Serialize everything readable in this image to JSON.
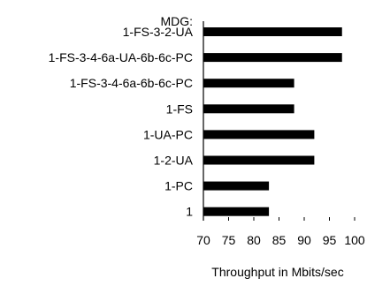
{
  "chart_data": {
    "type": "bar",
    "orientation": "horizontal",
    "categories": [
      "1-FS-3-2-UA",
      "1-FS-3-4-6a-UA-6b-6c-PC",
      "1-FS-3-4-6a-6b-6c-PC",
      "1-FS",
      "1-UA-PC",
      "1-2-UA",
      "1-PC",
      "1"
    ],
    "values": [
      97.5,
      97.5,
      88,
      88,
      92,
      92,
      83,
      83
    ],
    "title": "",
    "group_label": "MDG:",
    "xlabel": "Throughput in Mbits/sec",
    "ylabel": "",
    "xlim": [
      70,
      100
    ],
    "xticks": [
      70,
      75,
      80,
      85,
      90,
      95,
      100
    ],
    "grid": false,
    "legend": "none",
    "bar_color": "#000000"
  }
}
